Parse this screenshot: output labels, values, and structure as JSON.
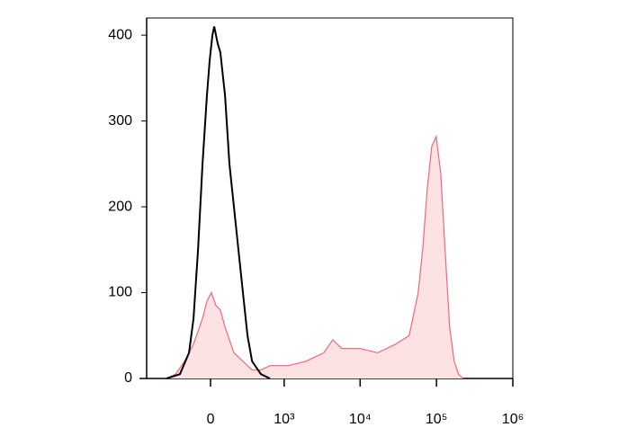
{
  "chart_data": {
    "type": "histogram-overlay",
    "xscale": "biexponential",
    "linear_width": 220,
    "xlim": [
      -740,
      1000000
    ],
    "xticks": [
      0,
      {
        "value": 1000,
        "label": "10³"
      },
      {
        "value": 10000,
        "label": "10⁴"
      },
      {
        "value": 100000,
        "label": "10⁵"
      },
      {
        "value": 1000000,
        "label": "10⁶"
      }
    ],
    "ylim": [
      0,
      420
    ],
    "yticks": [
      0,
      100,
      200,
      300,
      400
    ],
    "series": [
      {
        "color": "#f06878",
        "fill": "#fde2e4",
        "x": [
          -386,
          -278,
          -191,
          -118,
          -54,
          -24,
          6,
          36,
          66,
          99,
          168,
          250,
          353,
          478,
          640,
          1121,
          1940,
          3345,
          4389,
          5753,
          9889,
          17006,
          29260,
          43890,
          57550,
          65890,
          75460,
          86460,
          99000,
          113400,
          129800,
          148700,
          170300,
          195000,
          223300
        ],
        "values": [
          0,
          5,
          20,
          40,
          70,
          90,
          100,
          85,
          80,
          60,
          30,
          20,
          10,
          10,
          15,
          15,
          20,
          30,
          45,
          35,
          35,
          30,
          40,
          50,
          100,
          150,
          220,
          270,
          282,
          240,
          150,
          60,
          20,
          5,
          0
        ]
      },
      {
        "color": "#000000",
        "x": [
          -386,
          -233,
          -153,
          -118,
          -85,
          -54,
          -24,
          -6,
          12,
          24,
          48,
          66,
          99,
          132,
          168,
          207,
          250,
          299,
          353,
          478,
          640
        ],
        "values": [
          0,
          5,
          30,
          70,
          150,
          250,
          330,
          370,
          400,
          410,
          390,
          380,
          330,
          250,
          200,
          150,
          100,
          50,
          20,
          5,
          0
        ]
      }
    ]
  }
}
